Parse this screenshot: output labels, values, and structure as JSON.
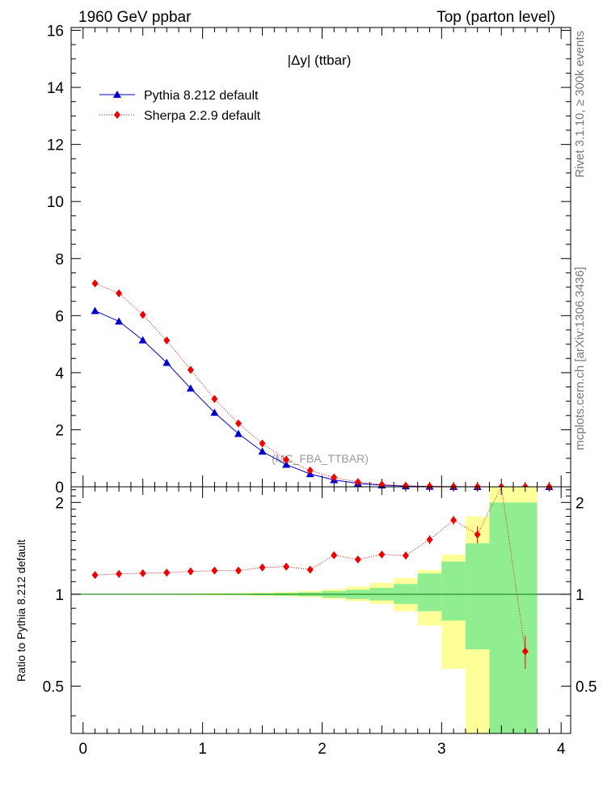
{
  "header": {
    "left": "1960 GeV ppbar",
    "right": "Top (parton level)"
  },
  "side_labels": {
    "rivet": "Rivet 3.1.10, ≥ 300k events",
    "mcplots": "mcplots.cern.ch [arXiv:1306.3436]"
  },
  "chart_data": [
    {
      "type": "line",
      "title": "|Δy| (ttbar)",
      "watermark": "(MC_FBA_TTBAR)",
      "xlim": [
        -0.1,
        4.08
      ],
      "ylim": [
        0,
        16.1
      ],
      "yticks": [
        0,
        2,
        4,
        6,
        8,
        10,
        12,
        14,
        16
      ],
      "legend": "top-left",
      "x": [
        0.1,
        0.3,
        0.5,
        0.7,
        0.9,
        1.1,
        1.3,
        1.5,
        1.7,
        1.9,
        2.1,
        2.3,
        2.5,
        2.7,
        2.9,
        3.1,
        3.3,
        3.5,
        3.7,
        3.9
      ],
      "series": [
        {
          "name": "Pythia 8.212 default",
          "color": "#0000cc",
          "marker": "triangle",
          "line": "solid",
          "values": [
            6.17,
            5.8,
            5.14,
            4.35,
            3.45,
            2.6,
            1.86,
            1.24,
            0.78,
            0.45,
            0.24,
            0.12,
            0.055,
            0.025,
            0.011,
            0.004,
            0.0015,
            0.0005,
            0.0002,
            0
          ]
        },
        {
          "name": "Sherpa 2.2.9 default",
          "color": "#ee0000",
          "marker": "diamond",
          "line": "dotted",
          "values": [
            7.13,
            6.78,
            6.03,
            5.13,
            4.1,
            3.08,
            2.22,
            1.52,
            0.95,
            0.57,
            0.33,
            0.165,
            0.077,
            0.035,
            0.016,
            0.007,
            0.0025,
            0.001,
            0.0002,
            0
          ]
        }
      ]
    },
    {
      "type": "line",
      "ylabel": "Ratio to Pythia 8.212 default",
      "xlim": [
        -0.1,
        4.08
      ],
      "ylim": [
        0.35,
        2.25
      ],
      "yticks": [
        0.5,
        1,
        2
      ],
      "xticks": [
        0,
        1,
        2,
        3,
        4
      ],
      "band_edges": [
        0,
        0.2,
        0.4,
        0.6,
        0.8,
        1.0,
        1.2,
        1.4,
        1.6,
        1.8,
        2.0,
        2.2,
        2.4,
        2.6,
        2.8,
        3.0,
        3.2,
        3.4,
        3.6,
        3.8
      ],
      "band_stat": {
        "color": "#90ee90",
        "low": [
          0.999,
          0.999,
          0.998,
          0.998,
          0.997,
          0.996,
          0.995,
          0.993,
          0.99,
          0.985,
          0.975,
          0.965,
          0.955,
          0.93,
          0.88,
          0.82,
          0.66,
          0.3,
          0.3
        ],
        "high": [
          1.001,
          1.001,
          1.002,
          1.002,
          1.003,
          1.004,
          1.005,
          1.007,
          1.01,
          1.015,
          1.025,
          1.035,
          1.05,
          1.08,
          1.17,
          1.28,
          1.47,
          2.0,
          2.0
        ]
      },
      "band_total": {
        "color": "#ffff99",
        "low": [
          0.998,
          0.998,
          0.997,
          0.996,
          0.995,
          0.993,
          0.991,
          0.988,
          0.984,
          0.978,
          0.965,
          0.95,
          0.93,
          0.88,
          0.79,
          0.57,
          0.3,
          0.3,
          0.3
        ],
        "high": [
          1.002,
          1.002,
          1.003,
          1.004,
          1.005,
          1.007,
          1.009,
          1.012,
          1.018,
          1.025,
          1.04,
          1.06,
          1.09,
          1.13,
          1.2,
          1.35,
          1.8,
          2.3,
          2.3
        ]
      },
      "series": [
        {
          "name": "Sherpa 2.2.9 default",
          "color": "#ee0000",
          "marker": "diamond",
          "line": "dotted",
          "x": [
            0.1,
            0.3,
            0.5,
            0.7,
            0.9,
            1.1,
            1.3,
            1.5,
            1.7,
            1.9,
            2.1,
            2.3,
            2.5,
            2.7,
            2.9,
            3.1,
            3.3,
            3.5,
            3.7
          ],
          "values": [
            1.156,
            1.166,
            1.172,
            1.178,
            1.188,
            1.196,
            1.196,
            1.224,
            1.232,
            1.204,
            1.343,
            1.3,
            1.35,
            1.34,
            1.51,
            1.75,
            1.57,
            2.4,
            0.65
          ],
          "err": [
            0.01,
            0.01,
            0.01,
            0.01,
            0.01,
            0.01,
            0.015,
            0.015,
            0.02,
            0.02,
            0.025,
            0.03,
            0.03,
            0.04,
            0.05,
            0.06,
            0.1,
            0.2,
            0.08
          ]
        }
      ],
      "reference_line": 1
    }
  ]
}
